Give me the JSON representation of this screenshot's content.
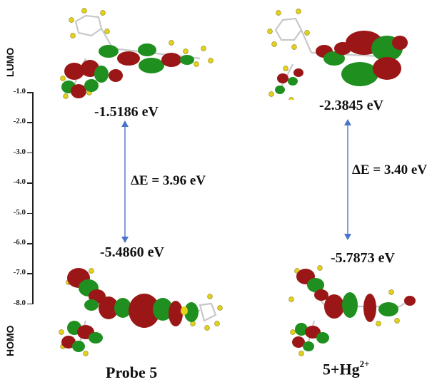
{
  "axis": {
    "lumo_label": "LUMO",
    "homo_label": "HOMO",
    "ticks": [
      "-1.0",
      "-2.0",
      "-3.0",
      "-4.0",
      "-5.0",
      "-6.0",
      "-7.0",
      "-8.0"
    ]
  },
  "probe": {
    "name": "Probe 5",
    "lumo_energy": "-1.5186 eV",
    "homo_energy": "-5.4860 eV",
    "gap": "ΔE = 3.96 eV"
  },
  "complex": {
    "name_base": "5+Hg",
    "name_charge": "2+",
    "lumo_energy": "-2.3845 eV",
    "homo_energy": "-5.7873 eV",
    "gap": "ΔE = 3.40 eV"
  },
  "colors": {
    "lobe_red": "#9b1717",
    "lobe_green": "#1f8f1f",
    "arrow": "#4a74c9",
    "hydrogen": "#e3d21c",
    "carbon": "#bdbdbd"
  }
}
